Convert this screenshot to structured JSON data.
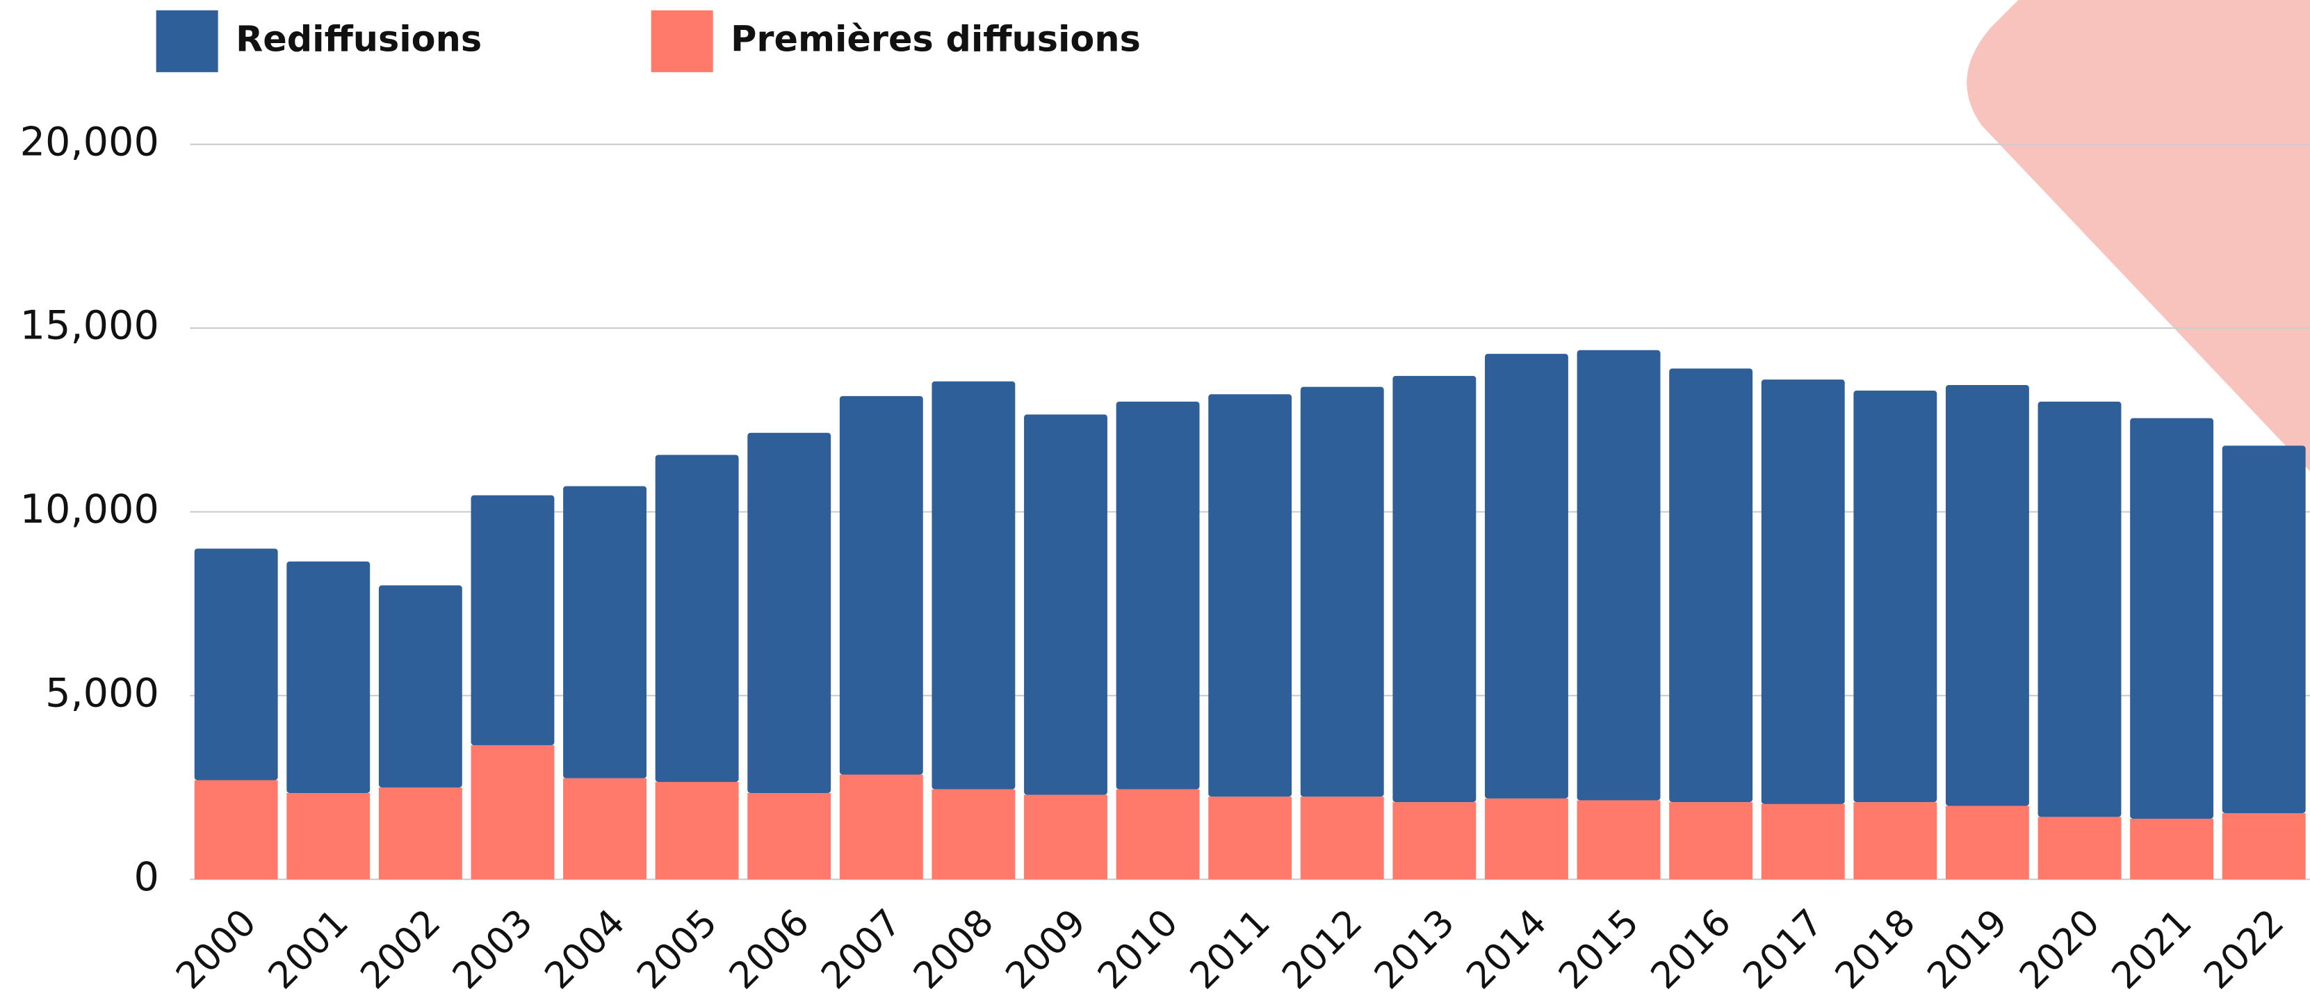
{
  "chart_data": {
    "type": "stacked_bar",
    "categories": [
      "2000",
      "2001",
      "2002",
      "2003",
      "2004",
      "2005",
      "2006",
      "2007",
      "2008",
      "2009",
      "2010",
      "2011",
      "2012",
      "2013",
      "2014",
      "2015",
      "2016",
      "2017",
      "2018",
      "2019",
      "2020",
      "2021",
      "2022"
    ],
    "series": [
      {
        "name": "Rediffusions",
        "color": "#2e5f99",
        "values": [
          6300,
          6300,
          5500,
          6800,
          7950,
          8900,
          9800,
          10300,
          11100,
          10350,
          10550,
          10950,
          11150,
          11600,
          12100,
          12250,
          11800,
          11550,
          11200,
          11450,
          11300,
          10900,
          10000
        ]
      },
      {
        "name": "Premières diffusions",
        "color": "#ff7a6b",
        "values": [
          2700,
          2350,
          2500,
          3650,
          2750,
          2650,
          2350,
          2850,
          2450,
          2300,
          2450,
          2250,
          2250,
          2100,
          2200,
          2150,
          2100,
          2050,
          2100,
          2000,
          1700,
          1650,
          1800
        ]
      }
    ],
    "ylim": [
      0,
      20000
    ],
    "yticks": [
      0,
      {
        "value": 5000,
        "label": "5,000"
      },
      {
        "value": 10000,
        "label": "10,000"
      },
      {
        "value": 15000,
        "label": "15,000"
      },
      {
        "value": 20000,
        "label": "20,000"
      }
    ],
    "grid": true
  }
}
